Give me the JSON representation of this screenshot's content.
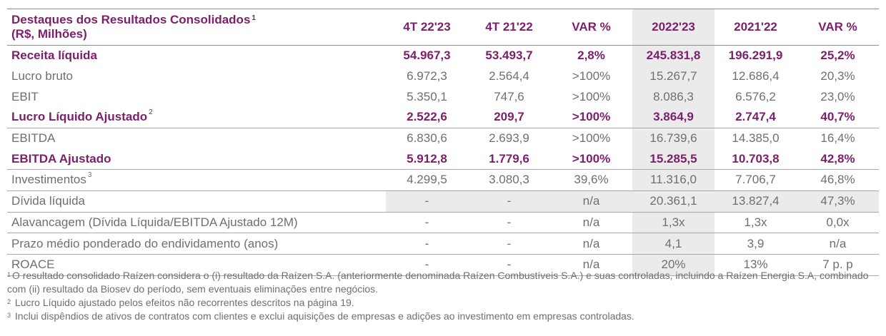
{
  "header": {
    "title_line1": "Destaques dos Resultados Consolidados",
    "title_sup": "1",
    "title_line2": "(R$, Milhões)",
    "columns": [
      "4T 22'23",
      "4T 21'22",
      "VAR %",
      "2022'23",
      "2021'22",
      "VAR %"
    ]
  },
  "rows": [
    {
      "label": "Receita líquida",
      "sup": "",
      "values": [
        "54.967,3",
        "53.493,7",
        "2,8%",
        "245.831,8",
        "196.291,9",
        "25,2%"
      ]
    },
    {
      "label": "Lucro bruto",
      "sup": "",
      "values": [
        "6.972,3",
        "2.564,4",
        ">100%",
        "15.267,7",
        "12.686,4",
        "20,3%"
      ]
    },
    {
      "label": "EBIT",
      "sup": "",
      "values": [
        "5.350,1",
        "747,6",
        ">100%",
        "8.086,3",
        "6.576,2",
        "23,0%"
      ]
    },
    {
      "label": "Lucro Líquido Ajustado",
      "sup": "2",
      "values": [
        "2.522,6",
        "209,7",
        ">100%",
        "3.864,9",
        "2.747,4",
        "40,7%"
      ]
    },
    {
      "label": "EBITDA",
      "sup": "",
      "values": [
        "6.830,6",
        "2.693,9",
        ">100%",
        "16.739,6",
        "14.385,0",
        "16,4%"
      ]
    },
    {
      "label": "EBITDA Ajustado",
      "sup": "",
      "values": [
        "5.912,8",
        "1.779,6",
        ">100%",
        "15.285,5",
        "10.703,8",
        "42,8%"
      ]
    },
    {
      "label": "Investimentos",
      "sup": "3",
      "values": [
        "4.299,5",
        "3.080,3",
        "39,6%",
        "11.316,0",
        "7.706,7",
        "46,8%"
      ]
    },
    {
      "label": "Dívida líquida",
      "sup": "",
      "values": [
        "-",
        "-",
        "n/a",
        "20.361,1",
        "13.827,4",
        "47,3%"
      ]
    },
    {
      "label": "Alavancagem (Dívida Líquida/EBITDA Ajustado 12M)",
      "sup": "",
      "values": [
        "-",
        "-",
        "n/a",
        "1,3x",
        "1,3x",
        "0,0x"
      ]
    },
    {
      "label": "Prazo médio ponderado do endividamento (anos)",
      "sup": "",
      "values": [
        "-",
        "-",
        "n/a",
        "4,1",
        "3,9",
        "n/a"
      ]
    },
    {
      "label": "ROACE",
      "sup": "",
      "values": [
        "-",
        "-",
        "n/a",
        "20%",
        "13%",
        "7 p. p"
      ]
    }
  ],
  "footnotes": [
    {
      "num": "1",
      "text": "O resultado consolidado Raízen considera o (i) resultado da Raízen S.A. (anteriormente denominada Raízen Combustíveis S.A.) e suas controladas, incluindo a Raízen Energia S.A, combinado com (ii) resultado da Biosev do período, sem eventuais eliminações entre negócios."
    },
    {
      "num": "2",
      "text": "Lucro Líquido ajustado pelos efeitos não recorrentes descritos na página 19."
    },
    {
      "num": "3",
      "text": "Inclui dispêndios de ativos de contratos com clientes e exclui aquisições de empresas e adições ao investimento em empresas controladas."
    }
  ]
}
